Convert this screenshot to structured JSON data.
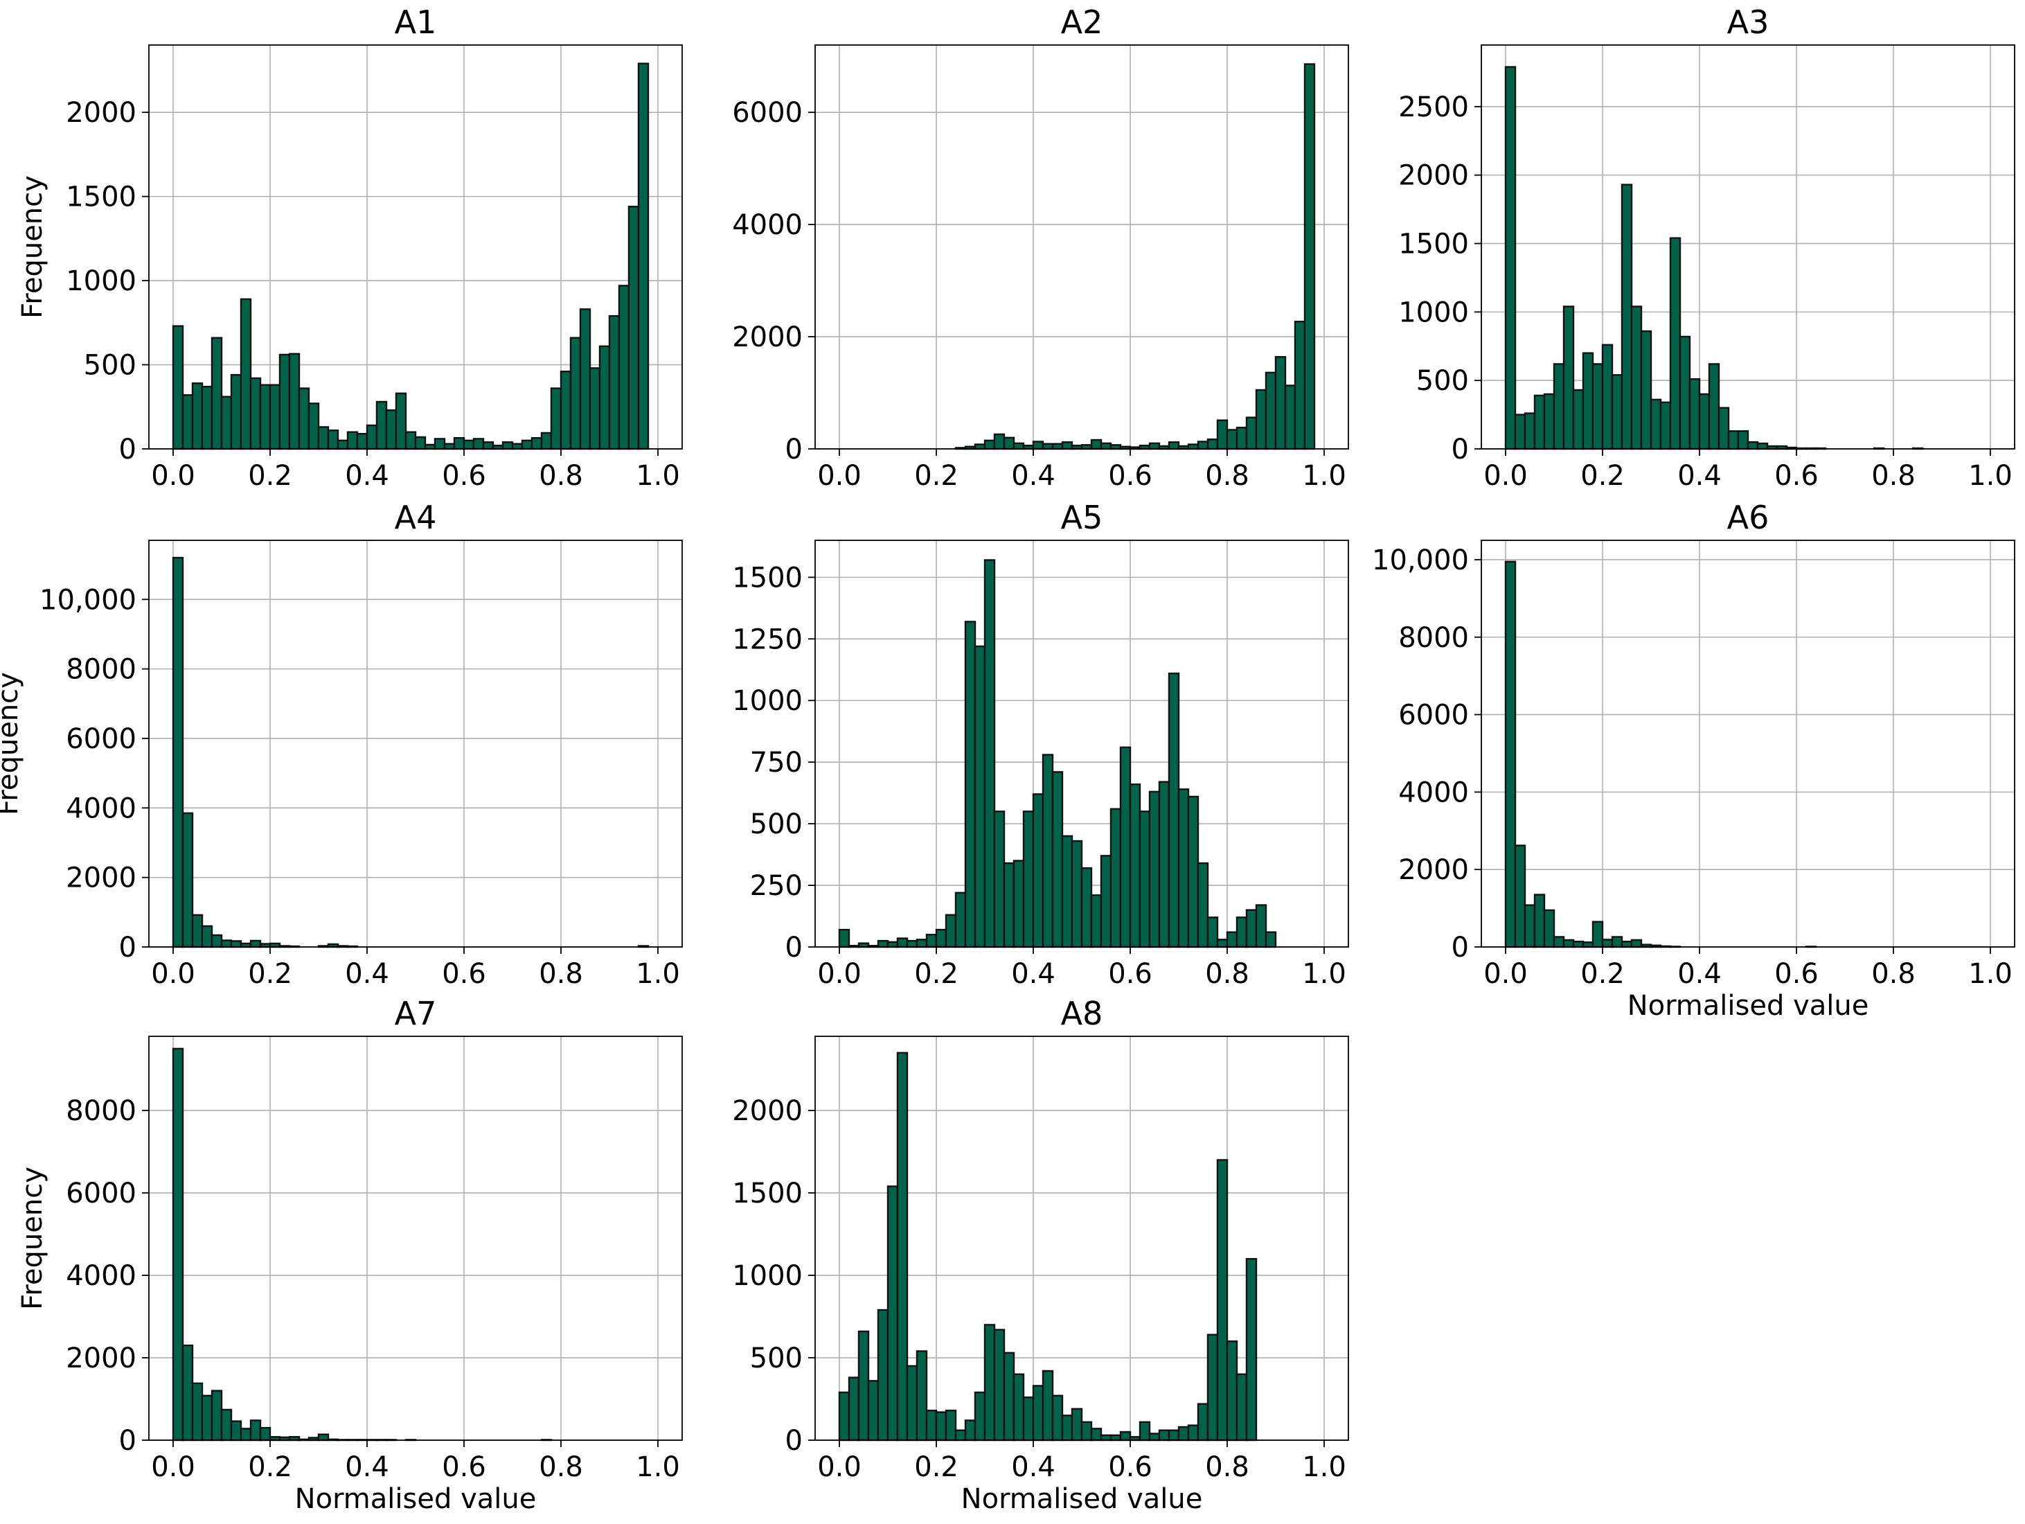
{
  "colors": {
    "bar": "#03634A",
    "edge": "#111111",
    "grid": "#b0b0b0"
  },
  "chart_data": [
    {
      "type": "bar",
      "title": "A1",
      "xlabel": "",
      "ylabel": "Frequency",
      "xlim": [
        -0.05,
        1.05
      ],
      "ylim": [
        0,
        2400
      ],
      "grid": true,
      "x_ticks": [
        "0.0",
        "0.2",
        "0.4",
        "0.6",
        "0.8",
        "1.0"
      ],
      "y_ticks": [
        "0",
        "500",
        "1000",
        "1500",
        "2000"
      ],
      "bin_width": 0.02,
      "values": [
        730,
        320,
        390,
        370,
        660,
        310,
        440,
        890,
        420,
        380,
        380,
        560,
        565,
        360,
        270,
        130,
        110,
        50,
        100,
        90,
        140,
        280,
        230,
        330,
        100,
        70,
        25,
        60,
        30,
        65,
        50,
        60,
        40,
        20,
        40,
        30,
        50,
        65,
        95,
        360,
        460,
        660,
        830,
        480,
        610,
        790,
        970,
        1440,
        2290
      ]
    },
    {
      "type": "bar",
      "title": "A2",
      "xlabel": "",
      "ylabel": "",
      "xlim": [
        -0.05,
        1.05
      ],
      "ylim": [
        0,
        7200
      ],
      "grid": true,
      "x_ticks": [
        "0.0",
        "0.2",
        "0.4",
        "0.6",
        "0.8",
        "1.0"
      ],
      "y_ticks": [
        "0",
        "2000",
        "4000",
        "6000"
      ],
      "bin_width": 0.02,
      "values": [
        0,
        0,
        0,
        0,
        0,
        0,
        0,
        0,
        0,
        0,
        0,
        0,
        20,
        40,
        80,
        150,
        260,
        200,
        100,
        60,
        130,
        90,
        90,
        120,
        60,
        70,
        160,
        100,
        70,
        40,
        30,
        60,
        100,
        50,
        120,
        50,
        80,
        130,
        170,
        510,
        340,
        380,
        560,
        1050,
        1360,
        1640,
        1130,
        2270,
        6860
      ]
    },
    {
      "type": "bar",
      "title": "A3",
      "xlabel": "",
      "ylabel": "",
      "xlim": [
        -0.05,
        1.05
      ],
      "ylim": [
        0,
        2950
      ],
      "grid": true,
      "x_ticks": [
        "0.0",
        "0.2",
        "0.4",
        "0.6",
        "0.8",
        "1.0"
      ],
      "y_ticks": [
        "0",
        "500",
        "1000",
        "1500",
        "2000",
        "2500"
      ],
      "bin_width": 0.02,
      "values": [
        2790,
        250,
        260,
        390,
        400,
        620,
        1040,
        430,
        700,
        620,
        760,
        540,
        1930,
        1040,
        860,
        360,
        340,
        1540,
        820,
        510,
        400,
        620,
        300,
        130,
        130,
        50,
        40,
        20,
        20,
        10,
        5,
        5,
        5,
        0,
        0,
        0,
        0,
        0,
        5,
        0,
        0,
        0,
        5,
        0,
        0,
        0,
        0,
        0,
        0
      ]
    },
    {
      "type": "bar",
      "title": "A4",
      "xlabel": "",
      "ylabel": "Frequency",
      "xlim": [
        -0.05,
        1.05
      ],
      "ylim": [
        0,
        11700
      ],
      "grid": true,
      "x_ticks": [
        "0.0",
        "0.2",
        "0.4",
        "0.6",
        "0.8",
        "1.0"
      ],
      "y_ticks": [
        "0",
        "2000",
        "4000",
        "6000",
        "8000",
        "10,000"
      ],
      "bin_width": 0.02,
      "values": [
        11200,
        3850,
        920,
        600,
        340,
        190,
        170,
        100,
        180,
        90,
        100,
        30,
        20,
        0,
        0,
        30,
        80,
        30,
        20,
        0,
        0,
        0,
        0,
        0,
        0,
        0,
        0,
        0,
        0,
        0,
        0,
        0,
        0,
        0,
        0,
        0,
        0,
        0,
        0,
        0,
        0,
        0,
        0,
        0,
        0,
        0,
        0,
        0,
        30
      ]
    },
    {
      "type": "bar",
      "title": "A5",
      "xlabel": "",
      "ylabel": "",
      "xlim": [
        -0.05,
        1.05
      ],
      "ylim": [
        0,
        1650
      ],
      "grid": true,
      "x_ticks": [
        "0.0",
        "0.2",
        "0.4",
        "0.6",
        "0.8",
        "1.0"
      ],
      "y_ticks": [
        "0",
        "250",
        "500",
        "750",
        "1000",
        "1250",
        "1500"
      ],
      "bin_width": 0.02,
      "values": [
        70,
        5,
        15,
        5,
        25,
        20,
        35,
        25,
        30,
        50,
        70,
        130,
        220,
        1320,
        1220,
        1570,
        550,
        340,
        350,
        550,
        620,
        780,
        710,
        450,
        430,
        320,
        210,
        370,
        560,
        810,
        660,
        550,
        630,
        670,
        1110,
        640,
        610,
        340,
        120,
        30,
        60,
        120,
        150,
        170,
        60,
        0,
        0,
        0,
        0
      ]
    },
    {
      "type": "bar",
      "title": "A6",
      "xlabel": "Normalised value",
      "ylabel": "",
      "xlim": [
        -0.05,
        1.05
      ],
      "ylim": [
        0,
        10500
      ],
      "grid": true,
      "x_ticks": [
        "0.0",
        "0.2",
        "0.4",
        "0.6",
        "0.8",
        "1.0"
      ],
      "y_ticks": [
        "0",
        "2000",
        "4000",
        "6000",
        "8000",
        "10,000"
      ],
      "bin_width": 0.02,
      "values": [
        9950,
        2620,
        1080,
        1350,
        950,
        260,
        180,
        140,
        120,
        650,
        190,
        260,
        140,
        180,
        60,
        40,
        20,
        10,
        0,
        0,
        0,
        0,
        0,
        0,
        0,
        0,
        0,
        0,
        0,
        0,
        0,
        10,
        0,
        0,
        0,
        0,
        0,
        0,
        0,
        0,
        0,
        0,
        0,
        0,
        0,
        0,
        0,
        0,
        0
      ]
    },
    {
      "type": "bar",
      "title": "A7",
      "xlabel": "Normalised value",
      "ylabel": "Frequency",
      "xlim": [
        -0.05,
        1.05
      ],
      "ylim": [
        0,
        9800
      ],
      "grid": true,
      "x_ticks": [
        "0.0",
        "0.2",
        "0.4",
        "0.6",
        "0.8",
        "1.0"
      ],
      "y_ticks": [
        "0",
        "2000",
        "4000",
        "6000",
        "8000"
      ],
      "bin_width": 0.02,
      "values": [
        9500,
        2300,
        1380,
        1080,
        1200,
        740,
        460,
        280,
        480,
        300,
        80,
        70,
        80,
        20,
        60,
        140,
        20,
        10,
        10,
        10,
        10,
        10,
        10,
        0,
        10,
        0,
        0,
        0,
        0,
        0,
        0,
        0,
        0,
        0,
        0,
        0,
        0,
        0,
        10,
        0,
        0,
        0,
        0,
        0,
        0,
        0,
        0,
        0,
        0
      ]
    },
    {
      "type": "bar",
      "title": "A8",
      "xlabel": "Normalised value",
      "ylabel": "",
      "xlim": [
        -0.05,
        1.05
      ],
      "ylim": [
        0,
        2450
      ],
      "grid": true,
      "x_ticks": [
        "0.0",
        "0.2",
        "0.4",
        "0.6",
        "0.8",
        "1.0"
      ],
      "y_ticks": [
        "0",
        "500",
        "1000",
        "1500",
        "2000"
      ],
      "bin_width": 0.02,
      "values": [
        290,
        380,
        660,
        360,
        790,
        1540,
        2350,
        450,
        540,
        180,
        170,
        180,
        60,
        120,
        290,
        700,
        670,
        530,
        400,
        260,
        330,
        420,
        270,
        150,
        190,
        110,
        70,
        30,
        30,
        50,
        20,
        110,
        40,
        60,
        60,
        80,
        90,
        220,
        640,
        1700,
        600,
        400,
        1100,
        0,
        0,
        0,
        0,
        0,
        0
      ]
    }
  ]
}
